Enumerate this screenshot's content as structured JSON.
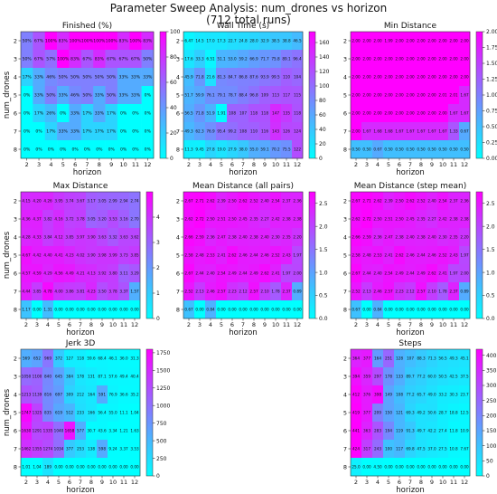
{
  "figure": {
    "title_line1": "Parameter Sweep Analysis: num_drones vs horizon",
    "title_line2": "(712 total runs)"
  },
  "colors": {
    "cmap_low": "#00ffff",
    "cmap_high": "#ff00ff",
    "colormap": "cool (cell-shaded with coolwarm-like tint)"
  },
  "chart_data": [
    {
      "type": "heatmap",
      "title": "Finished (%)",
      "xlabel": "horizon",
      "ylabel": "num_drones",
      "x": [
        "2",
        "3",
        "4",
        "5",
        "6",
        "7",
        "8",
        "9",
        "10",
        "11",
        "12"
      ],
      "y": [
        "2",
        "3",
        "4",
        "5",
        "6",
        "7",
        "8"
      ],
      "cell_format": "pct",
      "colorbar": {
        "min": 0,
        "max": 100,
        "ticks": [
          0,
          20,
          40,
          60,
          80,
          100
        ]
      },
      "values": [
        [
          50,
          67,
          100,
          83,
          100,
          100,
          100,
          100,
          83,
          100,
          83
        ],
        [
          50,
          67,
          57,
          100,
          83,
          67,
          83,
          67,
          67,
          67,
          50
        ],
        [
          17,
          33,
          46,
          50,
          50,
          50,
          50,
          50,
          33,
          33,
          33
        ],
        [
          0,
          33,
          50,
          33,
          46,
          50,
          33,
          50,
          33,
          33,
          0
        ],
        [
          0,
          17,
          26,
          0,
          33,
          17,
          33,
          17,
          0,
          0,
          0
        ],
        [
          0,
          0,
          17,
          33,
          33,
          17,
          17,
          17,
          0,
          0,
          0
        ],
        [
          0,
          0,
          0,
          0,
          0,
          0,
          0,
          0,
          0,
          0,
          0
        ]
      ]
    },
    {
      "type": "heatmap",
      "title": "Wall Time (s)",
      "xlabel": "horizon",
      "ylabel": "",
      "x": [
        "2",
        "3",
        "4",
        "5",
        "6",
        "7",
        "8",
        "9",
        "10",
        "11",
        "12"
      ],
      "y": [
        "2",
        "3",
        "4",
        "5",
        "6",
        "7",
        "8"
      ],
      "cell_format": "1",
      "colorbar": {
        "min": 0,
        "max": 175,
        "ticks": [
          0,
          20,
          40,
          60,
          80,
          100,
          120,
          140,
          160
        ]
      },
      "values": [
        [
          6.47,
          14.5,
          17.0,
          17.3,
          22.7,
          24.8,
          28.0,
          32.9,
          38.5,
          38.8,
          46.5
        ],
        [
          17.6,
          33.3,
          6.51,
          51.1,
          53.0,
          59.2,
          66.9,
          71.7,
          75.8,
          89.1,
          96.4
        ],
        [
          45.9,
          71.8,
          21.6,
          81.3,
          84.7,
          86.8,
          87.6,
          93.9,
          99.5,
          110,
          104
        ],
        [
          51.7,
          59.9,
          76.1,
          79.1,
          78.7,
          88.4,
          96.8,
          109,
          113,
          117,
          115
        ],
        [
          56.5,
          71.8,
          51.9,
          1.91,
          108,
          107,
          118,
          118,
          147,
          135,
          118
        ],
        [
          49.3,
          62.3,
          76.9,
          95.4,
          99.2,
          108,
          110,
          116,
          143,
          126,
          124
        ],
        [
          11.3,
          9.45,
          27.8,
          19.0,
          27.9,
          38.0,
          55.0,
          59.1,
          70.2,
          75.5,
          122
        ]
      ]
    },
    {
      "type": "heatmap",
      "title": "Min Distance",
      "xlabel": "horizon",
      "ylabel": "",
      "x": [
        "2",
        "3",
        "4",
        "5",
        "6",
        "7",
        "8",
        "9",
        "10",
        "11",
        "12"
      ],
      "y": [
        "2",
        "3",
        "4",
        "5",
        "6",
        "7",
        "8"
      ],
      "cell_format": "2",
      "colorbar": {
        "min": 0,
        "max": 2.0,
        "ticks": [
          0.0,
          0.25,
          0.5,
          0.75,
          1.0,
          1.25,
          1.5,
          1.75,
          2.0
        ]
      },
      "values": [
        [
          2.0,
          2.0,
          2.0,
          1.99,
          2.0,
          2.0,
          2.0,
          2.0,
          2.0,
          2.0,
          2.0
        ],
        [
          2.0,
          2.0,
          2.0,
          2.0,
          2.0,
          2.0,
          2.0,
          2.0,
          2.0,
          2.0,
          2.0
        ],
        [
          2.0,
          2.0,
          2.0,
          2.0,
          2.0,
          2.0,
          2.0,
          2.0,
          2.0,
          2.0,
          2.0
        ],
        [
          2.0,
          2.0,
          2.0,
          2.0,
          2.0,
          2.0,
          2.0,
          2.0,
          2.01,
          2.01,
          1.67
        ],
        [
          2.0,
          2.0,
          2.0,
          2.0,
          2.0,
          2.0,
          2.0,
          2.0,
          2.0,
          1.67,
          1.67
        ],
        [
          2.0,
          1.67,
          1.68,
          1.68,
          1.67,
          1.67,
          1.67,
          1.67,
          1.67,
          1.33,
          0.67
        ],
        [
          0.5,
          0.5,
          0.67,
          0.5,
          0.5,
          0.5,
          0.5,
          0.5,
          0.5,
          0.5,
          0.5
        ]
      ]
    },
    {
      "type": "heatmap",
      "title": "Max Distance",
      "xlabel": "horizon",
      "ylabel": "num_drones",
      "x": [
        "2",
        "3",
        "4",
        "5",
        "6",
        "7",
        "8",
        "9",
        "10",
        "11",
        "12"
      ],
      "y": [
        "2",
        "3",
        "4",
        "5",
        "6",
        "7",
        "8"
      ],
      "cell_format": "2",
      "colorbar": {
        "min": 0,
        "max": 5.0,
        "ticks": [
          0,
          1,
          2,
          3,
          4
        ]
      },
      "values": [
        [
          4.15,
          4.2,
          4.26,
          3.95,
          3.74,
          3.67,
          3.17,
          3.05,
          2.99,
          2.94,
          2.74
        ],
        [
          4.36,
          4.37,
          3.82,
          4.16,
          3.72,
          3.78,
          3.05,
          3.2,
          3.53,
          3.16,
          2.7
        ],
        [
          4.28,
          4.33,
          3.84,
          4.12,
          3.85,
          3.97,
          3.9,
          3.63,
          3.32,
          3.63,
          3.62
        ],
        [
          4.67,
          4.42,
          4.4,
          4.41,
          4.23,
          4.02,
          3.9,
          3.98,
          3.99,
          3.73,
          3.85
        ],
        [
          4.57,
          4.59,
          4.29,
          4.56,
          4.49,
          4.21,
          4.13,
          3.92,
          3.8,
          3.11,
          3.29
        ],
        [
          4.44,
          3.85,
          4.78,
          4.0,
          3.86,
          3.81,
          4.23,
          3.5,
          3.78,
          3.37,
          1.57
        ],
        [
          1.17,
          0.0,
          1.31,
          0.0,
          0.0,
          0.0,
          0.0,
          0.0,
          0.0,
          0.0,
          0.0
        ]
      ]
    },
    {
      "type": "heatmap",
      "title": "Mean Distance (all pairs)",
      "xlabel": "horizon",
      "ylabel": "",
      "x": [
        "2",
        "3",
        "4",
        "5",
        "6",
        "7",
        "8",
        "9",
        "10",
        "11",
        "12"
      ],
      "y": [
        "2",
        "3",
        "4",
        "5",
        "6",
        "7",
        "8"
      ],
      "cell_format": "2",
      "colorbar": {
        "min": 0,
        "max": 2.75,
        "ticks": [
          0.0,
          0.5,
          1.0,
          1.5,
          2.0,
          2.5
        ]
      },
      "values": [
        [
          2.67,
          2.71,
          2.62,
          2.39,
          2.5,
          2.62,
          2.52,
          2.4,
          2.54,
          2.37,
          2.36
        ],
        [
          2.62,
          2.72,
          2.5,
          2.51,
          2.5,
          2.45,
          2.35,
          2.27,
          2.42,
          2.38,
          2.38
        ],
        [
          2.66,
          2.59,
          2.36,
          2.47,
          2.38,
          2.4,
          2.38,
          2.4,
          2.3,
          2.35,
          2.2
        ],
        [
          2.58,
          2.48,
          2.53,
          2.41,
          2.62,
          2.46,
          2.44,
          2.46,
          2.52,
          2.43,
          1.97
        ],
        [
          2.67,
          2.44,
          2.4,
          2.54,
          2.49,
          2.44,
          2.49,
          2.62,
          2.41,
          1.97,
          2.0
        ],
        [
          2.52,
          2.13,
          2.46,
          2.57,
          2.23,
          2.12,
          2.57,
          2.1,
          1.78,
          2.37,
          0.89
        ],
        [
          0.67,
          0.0,
          0.84,
          0.0,
          0.0,
          0.0,
          0.0,
          0.0,
          0.0,
          0.0,
          0.0
        ]
      ]
    },
    {
      "type": "heatmap",
      "title": "Mean Distance (step mean)",
      "xlabel": "horizon",
      "ylabel": "",
      "x": [
        "2",
        "3",
        "4",
        "5",
        "6",
        "7",
        "8",
        "9",
        "10",
        "11",
        "12"
      ],
      "y": [
        "2",
        "3",
        "4",
        "5",
        "6",
        "7",
        "8"
      ],
      "cell_format": "2",
      "colorbar": {
        "min": 0,
        "max": 2.75,
        "ticks": [
          0.0,
          0.5,
          1.0,
          1.5,
          2.0,
          2.5
        ]
      },
      "values": [
        [
          2.67,
          2.71,
          2.62,
          2.39,
          2.5,
          2.62,
          2.52,
          2.4,
          2.54,
          2.37,
          2.36
        ],
        [
          2.62,
          2.72,
          2.5,
          2.51,
          2.5,
          2.45,
          2.35,
          2.27,
          2.42,
          2.38,
          2.38
        ],
        [
          2.66,
          2.59,
          2.36,
          2.47,
          2.38,
          2.4,
          2.38,
          2.4,
          2.3,
          2.35,
          2.2
        ],
        [
          2.58,
          2.48,
          2.53,
          2.41,
          2.62,
          2.46,
          2.44,
          2.46,
          2.52,
          2.43,
          1.97
        ],
        [
          2.67,
          2.44,
          2.4,
          2.54,
          2.49,
          2.44,
          2.49,
          2.62,
          2.41,
          1.97,
          2.0
        ],
        [
          2.52,
          2.13,
          2.46,
          2.57,
          2.23,
          2.12,
          2.57,
          2.1,
          1.78,
          2.37,
          0.89
        ],
        [
          0.67,
          0.0,
          0.84,
          0.0,
          0.0,
          0.0,
          0.0,
          0.0,
          0.0,
          0.0,
          0.0
        ]
      ]
    },
    {
      "type": "heatmap",
      "title": "Jerk 3D",
      "xlabel": "horizon",
      "ylabel": "num_drones",
      "x": [
        "2",
        "3",
        "4",
        "5",
        "6",
        "7",
        "8",
        "9",
        "10",
        "11",
        "12"
      ],
      "y": [
        "2",
        "3",
        "4",
        "5",
        "6",
        "7",
        "8"
      ],
      "cell_format": "1",
      "colorbar": {
        "min": 0,
        "max": 1800,
        "ticks": [
          0,
          250,
          500,
          750,
          1000,
          1250,
          1500,
          1750
        ]
      },
      "values": [
        [
          569,
          652,
          969,
          372,
          127,
          118,
          59.6,
          68.4,
          46.1,
          36.0,
          31.3
        ],
        [
          1050,
          1100,
          840,
          645,
          384,
          178,
          131,
          87.1,
          57.6,
          49.4,
          40.4
        ],
        [
          1213,
          1139,
          816,
          697,
          309,
          212,
          164,
          591,
          76.9,
          36.6,
          35.2
        ],
        [
          1747,
          1325,
          835,
          619,
          512,
          233,
          166,
          56.4,
          55.0,
          11.1,
          1.04
        ],
        [
          1630,
          1291,
          1335,
          1040,
          1658,
          576.8,
          30.7,
          43.6,
          3.34,
          1.21,
          1.63
        ],
        [
          1462,
          1355,
          1274,
          1034,
          377,
          253,
          138,
          598,
          9.24,
          3.37,
          3.53
        ],
        [
          1.01,
          1.04,
          188.5,
          0.0,
          0.0,
          0.0,
          0.0,
          0.0,
          0.0,
          0.0,
          0.0
        ]
      ]
    },
    {
      "type": "heatmap",
      "title": "Steps",
      "xlabel": "horizon",
      "ylabel": "",
      "x": [
        "2",
        "3",
        "4",
        "5",
        "6",
        "7",
        "8",
        "9",
        "10",
        "11",
        "12"
      ],
      "y": [
        "2",
        "3",
        "4",
        "5",
        "6",
        "7",
        "8"
      ],
      "cell_format": "1",
      "colorbar": {
        "min": 0,
        "max": 420,
        "ticks": [
          0,
          50,
          100,
          150,
          200,
          250,
          300,
          350,
          400
        ]
      },
      "values": [
        [
          364,
          377,
          164,
          251,
          128,
          107,
          88.3,
          71.3,
          56.5,
          49.3,
          45.1
        ],
        [
          394,
          359,
          297,
          178,
          133,
          89.7,
          77.2,
          60.0,
          50.5,
          42.5,
          37.5
        ],
        [
          412,
          376,
          398,
          149,
          108,
          77.2,
          65.7,
          49.0,
          33.2,
          30.3,
          23.7
        ],
        [
          419,
          377,
          209,
          150,
          121,
          69.3,
          49.2,
          50.6,
          28.7,
          18.8,
          12.5
        ],
        [
          441,
          363,
          283,
          194,
          119,
          91.3,
          49.7,
          42.2,
          27.4,
          11.8,
          10.9
        ],
        [
          424,
          317,
          243,
          100,
          117,
          69.8,
          47.5,
          37.0,
          27.5,
          10.8,
          7.67
        ],
        [
          25.0,
          0.0,
          4.5,
          0.0,
          0.0,
          0.0,
          0.0,
          0.0,
          0.0,
          0.0,
          0.0
        ]
      ]
    }
  ]
}
